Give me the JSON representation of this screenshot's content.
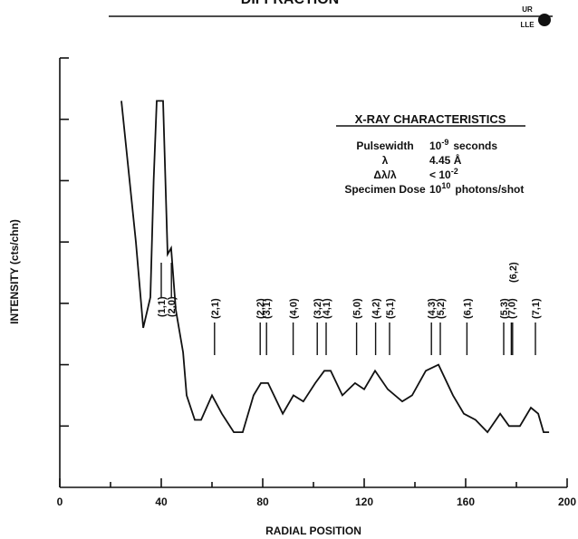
{
  "header": {
    "title": "DIFFRACTION",
    "logo_top": "UR",
    "logo_bottom": "LLE"
  },
  "chart_data": {
    "type": "line",
    "xlabel": "RADIAL POSITION",
    "ylabel": "INTENSITY (cts/chn)",
    "xlim": [
      0,
      200
    ],
    "xticks": [
      0,
      40,
      80,
      120,
      160,
      200
    ],
    "xminor": [
      20,
      60,
      100,
      140,
      180
    ],
    "ylim": [
      0,
      7
    ],
    "yticks": [
      1,
      2,
      3,
      4,
      5,
      6,
      7
    ],
    "color": "#111111",
    "x": [
      24.3,
      30,
      32.9,
      35.7,
      37,
      38.2,
      40.7,
      42.5,
      43.9,
      45.7,
      48.6,
      50,
      53.2,
      55.7,
      60,
      63.9,
      68.6,
      72.1,
      76.4,
      79.3,
      82.1,
      87.9,
      92.1,
      96,
      100.7,
      104.3,
      106.8,
      111.4,
      116.4,
      120,
      124.3,
      129.3,
      135,
      138.9,
      144.3,
      149.3,
      155,
      159.3,
      163.9,
      168.6,
      173.6,
      177.1,
      181.4,
      185.7,
      188.6,
      190.7,
      192.9
    ],
    "values": [
      6.3,
      4.0,
      2.6,
      3.1,
      5.0,
      6.3,
      6.3,
      3.8,
      3.9,
      2.9,
      2.2,
      1.5,
      1.1,
      1.1,
      1.5,
      1.2,
      0.9,
      0.9,
      1.5,
      1.7,
      1.7,
      1.2,
      1.5,
      1.4,
      1.7,
      1.9,
      1.9,
      1.5,
      1.7,
      1.6,
      1.9,
      1.6,
      1.4,
      1.5,
      1.9,
      2.0,
      1.5,
      1.2,
      1.1,
      0.9,
      1.2,
      1.0,
      1.0,
      1.3,
      1.2,
      0.9,
      0.9
    ],
    "peaks": [
      {
        "label": "(1,1)",
        "x": 40
      },
      {
        "label": "(2,0)",
        "x": 44
      },
      {
        "label": "(2,1)",
        "x": 61
      },
      {
        "label": "(2,2)",
        "x": 79
      },
      {
        "label": "(3,1)",
        "x": 81.5
      },
      {
        "label": "(4,0)",
        "x": 92
      },
      {
        "label": "(3,2)",
        "x": 101.5
      },
      {
        "label": "(4,1)",
        "x": 105
      },
      {
        "label": "(5,0)",
        "x": 117
      },
      {
        "label": "(4,2)",
        "x": 124.5
      },
      {
        "label": "(5,1)",
        "x": 130
      },
      {
        "label": "(4,3)",
        "x": 146.5
      },
      {
        "label": "(5,2)",
        "x": 150
      },
      {
        "label": "(6,1)",
        "x": 160.5
      },
      {
        "label": "(5,3)",
        "x": 175
      },
      {
        "label": "(7,0)",
        "x": 178
      },
      {
        "label": "(6,2)",
        "x": 178.5
      },
      {
        "label": "(7,1)",
        "x": 187.5
      }
    ],
    "annotation": {
      "title": "X-RAY CHARACTERISTICS",
      "rows": [
        {
          "label": "Pulsewidth",
          "base": "10",
          "exp": "-9",
          "unit": "seconds"
        },
        {
          "label": "λ",
          "base": "4.45 Å"
        },
        {
          "label": "Δλ/λ",
          "base": "< 10",
          "exp": "-2"
        },
        {
          "label": "Specimen Dose",
          "base": "10",
          "exp": "10",
          "unit": "photons/shot"
        }
      ]
    }
  }
}
